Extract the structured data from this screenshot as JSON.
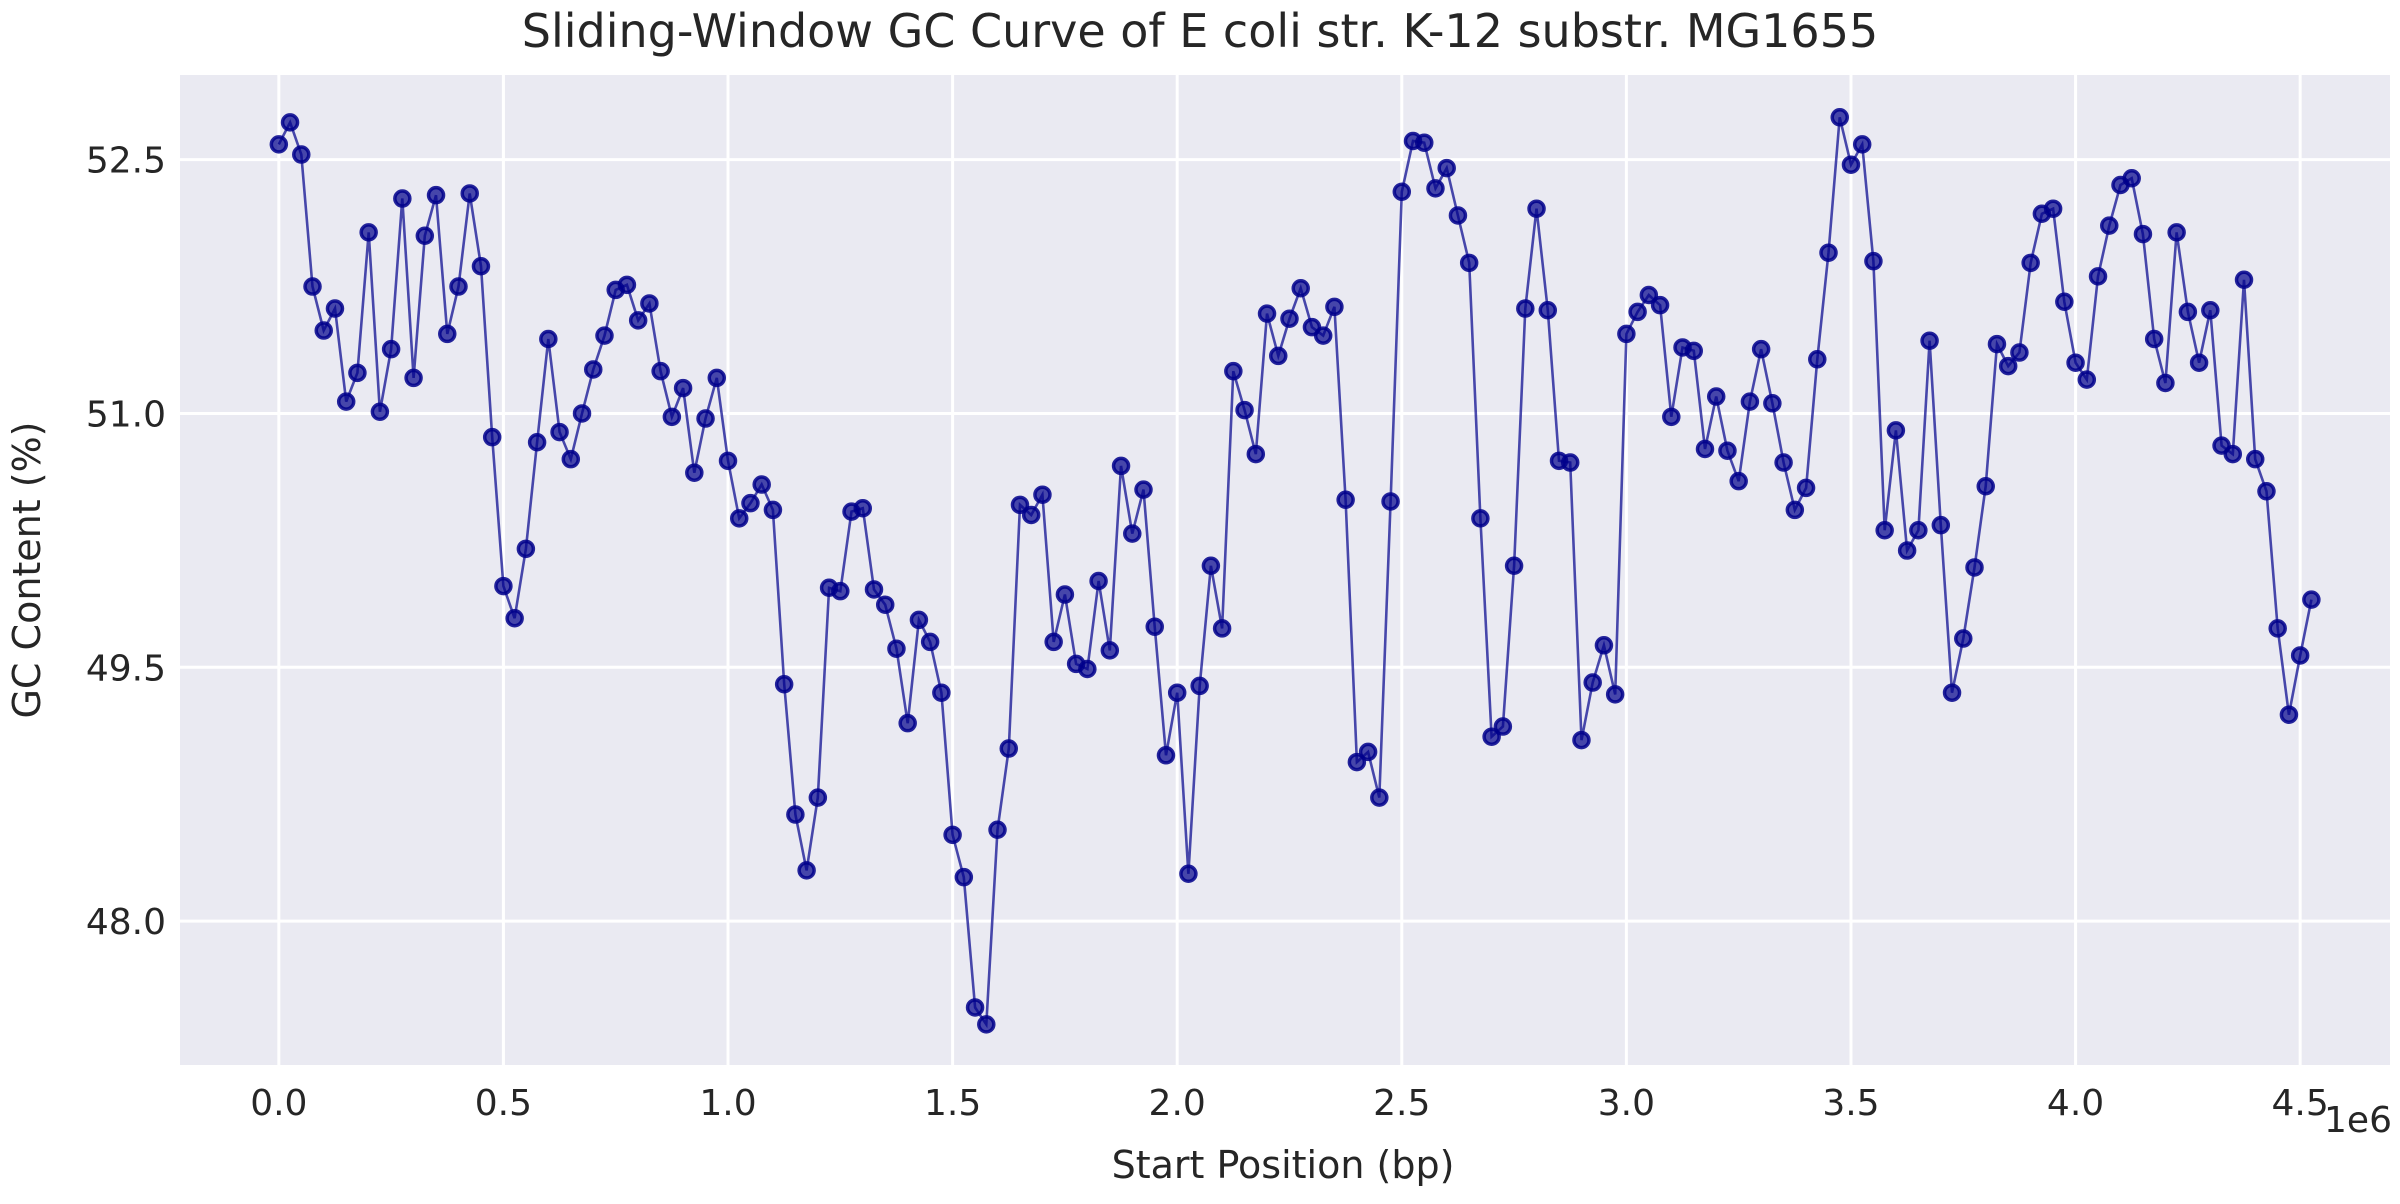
{
  "chart_data": {
    "type": "line",
    "title": "Sliding-Window GC Curve of E coli str. K-12 substr. MG1655",
    "xlabel": "Start Position (bp)",
    "ylabel": "GC Content (%)",
    "x_offset_label": "1e6",
    "x_scale": 1000000,
    "xlim": [
      -0.22,
      4.7
    ],
    "ylim": [
      47.15,
      53.0
    ],
    "xticks": [
      0.0,
      0.5,
      1.0,
      1.5,
      2.0,
      2.5,
      3.0,
      3.5,
      4.0,
      4.5
    ],
    "xtick_labels": [
      "0.0",
      "0.5",
      "1.0",
      "1.5",
      "2.0",
      "2.5",
      "3.0",
      "3.5",
      "4.0",
      "4.5"
    ],
    "yticks": [
      48.0,
      49.5,
      51.0,
      52.5
    ],
    "ytick_labels": [
      "48.0",
      "49.5",
      "51.0",
      "52.5"
    ],
    "grid": true,
    "colors": {
      "background": "#eaeaf2",
      "grid": "#ffffff",
      "series": "#00008b"
    },
    "series": [
      {
        "x": [
          0,
          25000,
          50000,
          75000,
          100000,
          125000,
          150000,
          175000,
          200000,
          225000,
          250000,
          275000,
          300000,
          325000,
          350000,
          375000,
          400000,
          425000,
          450000,
          475000,
          500000,
          525000,
          550000,
          575000,
          600000,
          625000,
          650000,
          675000,
          700000,
          725000,
          750000,
          775000,
          800000,
          825000,
          850000,
          875000,
          900000,
          925000,
          950000,
          975000,
          1000000,
          1025000,
          1050000,
          1075000,
          1100000,
          1125000,
          1150000,
          1175000,
          1200000,
          1225000,
          1250000,
          1275000,
          1300000,
          1325000,
          1350000,
          1375000,
          1400000,
          1425000,
          1450000,
          1475000,
          1500000,
          1525000,
          1550000,
          1575000,
          1600000,
          1625000,
          1650000,
          1675000,
          1700000,
          1725000,
          1750000,
          1775000,
          1800000,
          1825000,
          1850000,
          1875000,
          1900000,
          1925000,
          1950000,
          1975000,
          2000000,
          2025000,
          2050000,
          2075000,
          2100000,
          2125000,
          2150000,
          2175000,
          2200000,
          2225000,
          2250000,
          2275000,
          2300000,
          2325000,
          2350000,
          2375000,
          2400000,
          2425000,
          2450000,
          2475000,
          2500000,
          2525000,
          2550000,
          2575000,
          2600000,
          2625000,
          2650000,
          2675000,
          2700000,
          2725000,
          2750000,
          2775000,
          2800000,
          2825000,
          2850000,
          2875000,
          2900000,
          2925000,
          2950000,
          2975000,
          3000000,
          3025000,
          3050000,
          3075000,
          3100000,
          3125000,
          3150000,
          3175000,
          3200000,
          3225000,
          3250000,
          3275000,
          3300000,
          3325000,
          3350000,
          3375000,
          3400000,
          3425000,
          3450000,
          3475000,
          3500000,
          3525000,
          3550000,
          3575000,
          3600000,
          3625000,
          3650000,
          3675000,
          3700000,
          3725000,
          3750000,
          3775000,
          3800000,
          3825000,
          3850000,
          3875000,
          3900000,
          3925000,
          3950000,
          3975000,
          4000000,
          4025000,
          4050000,
          4075000,
          4100000,
          4125000,
          4150000,
          4175000,
          4200000,
          4225000,
          4250000,
          4275000,
          4300000,
          4325000,
          4350000,
          4375000,
          4400000,
          4425000,
          4450000,
          4475000,
          4500000,
          4525000
        ],
        "y": [
          52.59,
          52.72,
          52.53,
          51.75,
          51.49,
          51.62,
          51.07,
          51.24,
          52.07,
          51.01,
          51.38,
          52.27,
          51.21,
          52.05,
          52.29,
          51.47,
          51.75,
          52.3,
          51.87,
          50.86,
          49.98,
          49.79,
          50.2,
          50.83,
          51.44,
          50.89,
          50.73,
          51.0,
          51.26,
          51.46,
          51.73,
          51.76,
          51.55,
          51.65,
          51.25,
          50.98,
          51.15,
          50.65,
          50.97,
          51.21,
          50.72,
          50.38,
          50.47,
          50.58,
          50.43,
          49.4,
          48.63,
          48.3,
          48.73,
          49.97,
          49.95,
          50.42,
          50.44,
          49.96,
          49.87,
          49.61,
          49.17,
          49.78,
          49.65,
          49.35,
          48.51,
          48.26,
          47.49,
          47.39,
          48.54,
          49.02,
          50.46,
          50.4,
          50.52,
          49.65,
          49.93,
          49.52,
          49.49,
          50.01,
          49.6,
          50.69,
          50.29,
          50.55,
          49.74,
          48.98,
          49.35,
          48.28,
          49.39,
          50.1,
          49.73,
          51.25,
          51.02,
          50.76,
          51.59,
          51.34,
          51.56,
          51.74,
          51.51,
          51.46,
          51.63,
          50.49,
          48.94,
          49.0,
          48.73,
          50.48,
          52.31,
          52.61,
          52.6,
          52.33,
          52.45,
          52.17,
          51.89,
          50.38,
          49.09,
          49.15,
          50.1,
          51.62,
          52.21,
          51.61,
          50.72,
          50.71,
          49.07,
          49.41,
          49.63,
          49.34,
          51.47,
          51.6,
          51.7,
          51.64,
          50.98,
          51.39,
          51.37,
          50.79,
          51.1,
          50.78,
          50.6,
          51.07,
          51.38,
          51.06,
          50.71,
          50.43,
          50.56,
          51.32,
          51.95,
          52.75,
          52.47,
          52.59,
          51.9,
          50.31,
          50.9,
          50.19,
          50.31,
          51.43,
          50.34,
          49.35,
          49.67,
          50.09,
          50.57,
          51.41,
          51.28,
          51.36,
          51.89,
          52.18,
          52.21,
          51.66,
          51.3,
          51.2,
          51.81,
          52.11,
          52.35,
          52.39,
          52.06,
          51.44,
          51.18,
          52.07,
          51.6,
          51.3,
          51.61,
          50.81,
          50.76,
          51.79,
          50.73,
          50.54,
          49.73,
          49.22,
          49.57,
          49.9
        ]
      }
    ]
  }
}
